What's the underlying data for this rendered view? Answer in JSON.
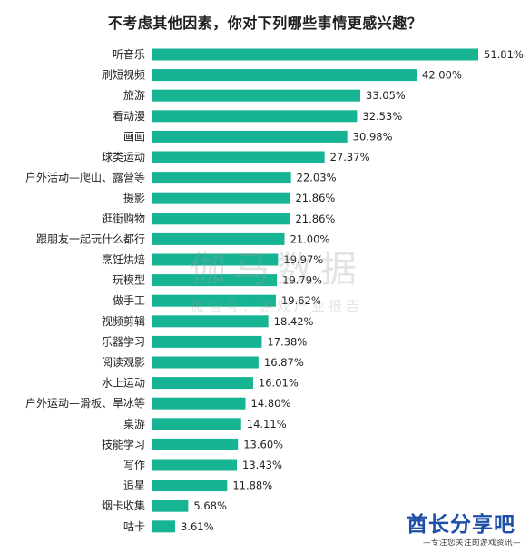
{
  "chart_data": {
    "type": "bar",
    "orientation": "horizontal",
    "title": "不考虑其他因素，你对下列哪些事情更感兴趣？",
    "categories": [
      "听音乐",
      "刷短视频",
      "旅游",
      "看动漫",
      "画画",
      "球类运动",
      "户外活动—爬山、露营等",
      "摄影",
      "逛街购物",
      "跟朋友一起玩什么都行",
      "烹饪烘焙",
      "玩模型",
      "做手工",
      "视频剪辑",
      "乐器学习",
      "阅读观影",
      "水上运动",
      "户外运动—滑板、旱冰等",
      "桌游",
      "技能学习",
      "写作",
      "追星",
      "烟卡收集",
      "咕卡"
    ],
    "values": [
      51.81,
      42.0,
      33.05,
      32.53,
      30.98,
      27.37,
      22.03,
      21.86,
      21.86,
      21.0,
      19.97,
      19.79,
      19.62,
      18.42,
      17.38,
      16.87,
      16.01,
      14.8,
      14.11,
      13.6,
      13.43,
      11.88,
      5.68,
      3.61
    ],
    "value_labels": [
      "51.81%",
      "42.00%",
      "33.05%",
      "32.53%",
      "30.98%",
      "27.37%",
      "22.03%",
      "21.86%",
      "21.86%",
      "21.00%",
      "19.97%",
      "19.79%",
      "19.62%",
      "18.42%",
      "17.38%",
      "16.87%",
      "16.01%",
      "14.80%",
      "14.11%",
      "13.60%",
      "13.43%",
      "11.88%",
      "5.68%",
      "3.61%"
    ],
    "unit": "%",
    "xlim": [
      0,
      51.81
    ],
    "grid": false,
    "legend": "none",
    "bar_color": "#17b493"
  },
  "watermark": {
    "line1": "伽马数据",
    "line2": "微信号：游戏产业报告"
  },
  "brand": {
    "name": "酋长分享吧",
    "slogan": "—专注您关注的游戏资讯—"
  },
  "colors": {
    "brand": "#1d4fa8",
    "text": "#1f1f1f"
  }
}
